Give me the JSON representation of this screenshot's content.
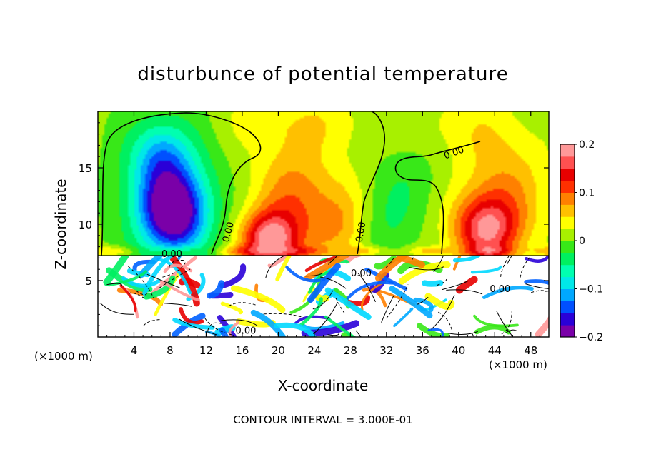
{
  "chart_data": {
    "type": "heatmap",
    "title": "disturbunce of potential temperature",
    "xlabel": "X-coordinate",
    "ylabel": "Z-coordinate",
    "x_unit": "(×1000 m)",
    "z_unit": "(×1000 m)",
    "xlim": [
      0,
      50
    ],
    "ylim": [
      0,
      20
    ],
    "x_ticks": [
      4,
      8,
      12,
      16,
      20,
      24,
      28,
      32,
      36,
      40,
      44,
      48
    ],
    "y_ticks": [
      5,
      10,
      15
    ],
    "colorbar": {
      "range": [
        -0.2,
        0.2
      ],
      "tick_values": [
        0.2,
        0.1,
        0,
        -0.1,
        -0.2
      ],
      "tick_labels": [
        "0.2",
        "0.1",
        "0",
        "−0.1",
        "−0.2"
      ],
      "colors": [
        "#7a00a8",
        "#2a00d8",
        "#0050ff",
        "#00a8ff",
        "#00e8e8",
        "#00ffb0",
        "#00f060",
        "#38e818",
        "#a8f000",
        "#ffff00",
        "#ffc000",
        "#ff8000",
        "#ff3000",
        "#e80000",
        "#ff5050",
        "#ff9898"
      ]
    },
    "contour_labels": [
      {
        "text": "0.00",
        "x": 14.5,
        "z": 9.3,
        "rotate": -75
      },
      {
        "text": "0.00",
        "x": 29.2,
        "z": 9.3,
        "rotate": -80
      },
      {
        "text": "0.00",
        "x": 39.5,
        "z": 16.3,
        "rotate": -20
      },
      {
        "text": "0.00",
        "x": 8.2,
        "z": 7.3,
        "rotate": 0
      },
      {
        "text": "0.00",
        "x": 29.2,
        "z": 5.6,
        "rotate": 0
      },
      {
        "text": "0.00",
        "x": 44.6,
        "z": 4.2,
        "rotate": 0
      },
      {
        "text": "0.00",
        "x": 16.4,
        "z": 0.5,
        "rotate": 0
      }
    ],
    "contour_interval_text": "CONTOUR INTERVAL = 3.000E-01",
    "grid": false,
    "field_blobs": [
      {
        "x": 7.5,
        "z": 13.0,
        "rx": 5.5,
        "rz": 6.5,
        "v": -0.08
      },
      {
        "x": 8.5,
        "z": 11.0,
        "rx": 3.5,
        "rz": 3.5,
        "v": -0.18
      },
      {
        "x": 7.0,
        "z": 16.0,
        "rx": 3.0,
        "rz": 3.0,
        "v": -0.07
      },
      {
        "x": 19.0,
        "z": 8.5,
        "rx": 3.0,
        "rz": 2.5,
        "v": 0.17
      },
      {
        "x": 22.0,
        "z": 12.0,
        "rx": 4.5,
        "rz": 5.0,
        "v": 0.08
      },
      {
        "x": 27.0,
        "z": 10.0,
        "rx": 3.0,
        "rz": 3.5,
        "v": 0.05
      },
      {
        "x": 32.0,
        "z": 10.0,
        "rx": 3.5,
        "rz": 4.0,
        "v": -0.035
      },
      {
        "x": 35.0,
        "z": 14.5,
        "rx": 4.0,
        "rz": 4.0,
        "v": -0.025
      },
      {
        "x": 43.0,
        "z": 9.5,
        "rx": 3.5,
        "rz": 3.0,
        "v": 0.15
      },
      {
        "x": 45.0,
        "z": 13.0,
        "rx": 4.5,
        "rz": 5.0,
        "v": 0.06
      },
      {
        "x": 22.0,
        "z": 19.0,
        "rx": 8.0,
        "rz": 2.5,
        "v": 0.03
      },
      {
        "x": 40.0,
        "z": 18.5,
        "rx": 6.0,
        "rz": 3.0,
        "v": 0.025
      }
    ]
  }
}
